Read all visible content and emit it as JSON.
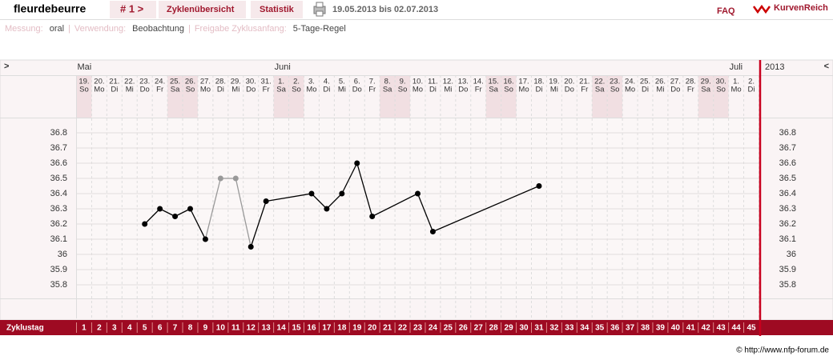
{
  "header": {
    "user": "fleurdebeurre",
    "cycle": "# 1 >",
    "nav": [
      "Zyklenübersicht",
      "Statistik"
    ],
    "period": "19.05.2013 bis 02.07.2013",
    "faq": "FAQ",
    "brand": "KurvenReich"
  },
  "settings": [
    {
      "label": "Messung:",
      "value": "oral"
    },
    {
      "label": "Verwendung:",
      "value": "Beobachtung"
    },
    {
      "label": "Freigabe Zyklusanfang:",
      "value": "5-Tage-Regel"
    }
  ],
  "separator": "|",
  "chart_data": {
    "type": "line",
    "nav_prev": ">",
    "nav_next": "<",
    "year": "2013",
    "categories": [
      "19.",
      "20.",
      "21.",
      "22.",
      "23.",
      "24.",
      "25.",
      "26.",
      "27.",
      "28.",
      "29.",
      "30.",
      "31.",
      "1.",
      "2.",
      "3.",
      "4.",
      "5.",
      "6.",
      "7.",
      "8.",
      "9.",
      "10.",
      "11.",
      "12.",
      "13.",
      "14.",
      "15.",
      "16.",
      "17.",
      "18.",
      "19.",
      "20.",
      "21.",
      "22.",
      "23.",
      "24.",
      "25.",
      "26.",
      "27.",
      "28.",
      "29.",
      "30.",
      "1.",
      "2."
    ],
    "weekdays": [
      "So",
      "Mo",
      "Di",
      "Mi",
      "Do",
      "Fr",
      "Sa",
      "So",
      "Mo",
      "Di",
      "Mi",
      "Do",
      "Fr",
      "Sa",
      "So",
      "Mo",
      "Di",
      "Mi",
      "Do",
      "Fr",
      "Sa",
      "So",
      "Mo",
      "Di",
      "Mi",
      "Do",
      "Fr",
      "Sa",
      "So",
      "Mo",
      "Di",
      "Mi",
      "Do",
      "Fr",
      "Sa",
      "So",
      "Mo",
      "Di",
      "Mi",
      "Do",
      "Fr",
      "Sa",
      "So",
      "Mo",
      "Di"
    ],
    "months": [
      "Mai",
      null,
      null,
      null,
      null,
      null,
      null,
      null,
      null,
      null,
      null,
      null,
      null,
      "Juni",
      null,
      null,
      null,
      null,
      null,
      null,
      null,
      null,
      null,
      null,
      null,
      null,
      null,
      null,
      null,
      null,
      null,
      null,
      null,
      null,
      null,
      null,
      null,
      null,
      null,
      null,
      null,
      null,
      null,
      "Juli",
      null
    ],
    "cycle_days": [
      1,
      2,
      3,
      4,
      5,
      6,
      7,
      8,
      9,
      10,
      11,
      12,
      13,
      14,
      15,
      16,
      17,
      18,
      19,
      20,
      21,
      22,
      23,
      24,
      25,
      26,
      27,
      28,
      29,
      30,
      31,
      32,
      33,
      34,
      35,
      36,
      37,
      38,
      39,
      40,
      41,
      42,
      43,
      44,
      45
    ],
    "row_label": "Zyklustag",
    "x": [
      5,
      6,
      7,
      8,
      9,
      10,
      11,
      12,
      13,
      16,
      17,
      18,
      19,
      20,
      23,
      24,
      31
    ],
    "values": [
      36.2,
      36.3,
      36.25,
      36.3,
      36.1,
      36.5,
      36.5,
      36.05,
      36.35,
      36.4,
      36.3,
      36.4,
      36.6,
      36.25,
      36.4,
      36.15,
      36.45
    ],
    "point_colors": [
      "#000",
      "#000",
      "#000",
      "#000",
      "#000",
      "#999",
      "#999",
      "#000",
      "#000",
      "#000",
      "#000",
      "#000",
      "#000",
      "#000",
      "#000",
      "#000",
      "#000"
    ],
    "ylim": [
      35.7,
      36.9
    ],
    "yticks": [
      35.8,
      35.9,
      36,
      36.1,
      36.2,
      36.3,
      36.4,
      36.5,
      36.6,
      36.7,
      36.8
    ],
    "grid": true
  },
  "copyright": "© http://www.nfp-forum.de"
}
